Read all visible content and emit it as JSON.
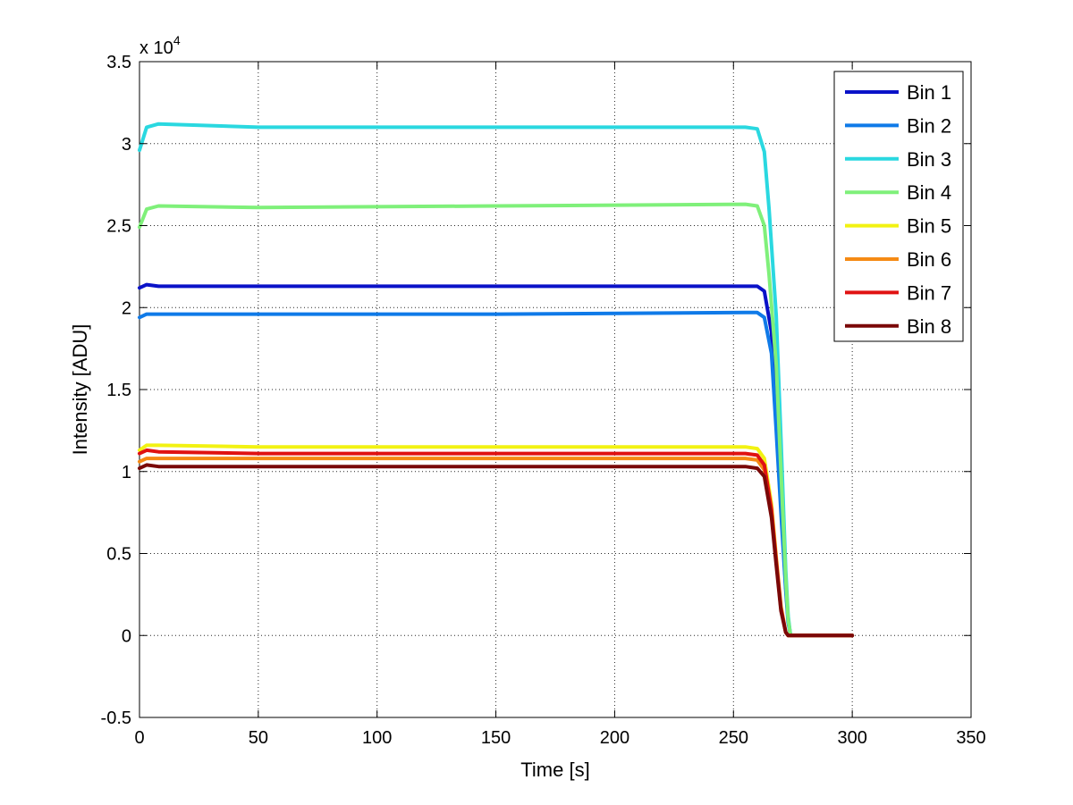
{
  "chart_data": {
    "type": "line",
    "xlabel": "Time [s]",
    "ylabel": "Intensity [ADU]",
    "xlim": [
      0,
      350
    ],
    "ylim": [
      -0.5,
      3.5
    ],
    "y_multiplier_label": "x 10",
    "y_multiplier_exponent": "4",
    "x_ticks": [
      0,
      50,
      100,
      150,
      200,
      250,
      300,
      350
    ],
    "x_tick_labels": [
      "0",
      "50",
      "100",
      "150",
      "200",
      "250",
      "300",
      "350"
    ],
    "y_ticks": [
      -0.5,
      0,
      0.5,
      1,
      1.5,
      2,
      2.5,
      3,
      3.5
    ],
    "y_tick_labels": [
      "-0.5",
      "0",
      "0.5",
      "1",
      "1.5",
      "2",
      "2.5",
      "3",
      "3.5"
    ],
    "grid": true,
    "legend_position": "top-right",
    "series": [
      {
        "name": "Bin 1",
        "color": "#0a12c8",
        "x": [
          0,
          3,
          8,
          50,
          150,
          255,
          260,
          263,
          266,
          268,
          270,
          272,
          273,
          274,
          300
        ],
        "y": [
          2.12,
          2.14,
          2.13,
          2.13,
          2.13,
          2.13,
          2.13,
          2.1,
          1.85,
          1.35,
          0.8,
          0.3,
          0.1,
          0.0,
          0.0
        ]
      },
      {
        "name": "Bin 2",
        "color": "#0f7ae8",
        "x": [
          0,
          3,
          8,
          50,
          150,
          255,
          260,
          263,
          266,
          268,
          270,
          272,
          273,
          274,
          300
        ],
        "y": [
          1.94,
          1.96,
          1.96,
          1.96,
          1.96,
          1.97,
          1.97,
          1.94,
          1.72,
          1.25,
          0.75,
          0.28,
          0.08,
          0.0,
          0.0
        ]
      },
      {
        "name": "Bin 3",
        "color": "#2ad8e0",
        "x": [
          0,
          3,
          8,
          50,
          150,
          255,
          260,
          263,
          265,
          268,
          270,
          272,
          273,
          274,
          300
        ],
        "y": [
          2.96,
          3.1,
          3.12,
          3.1,
          3.1,
          3.1,
          3.09,
          2.95,
          2.6,
          1.95,
          1.2,
          0.4,
          0.12,
          0.0,
          0.0
        ]
      },
      {
        "name": "Bin 4",
        "color": "#7ff07a",
        "x": [
          0,
          3,
          8,
          50,
          150,
          255,
          260,
          263,
          265,
          268,
          270,
          272,
          273,
          274,
          300
        ],
        "y": [
          2.49,
          2.6,
          2.62,
          2.61,
          2.62,
          2.63,
          2.62,
          2.5,
          2.2,
          1.65,
          1.0,
          0.35,
          0.1,
          0.0,
          0.0
        ]
      },
      {
        "name": "Bin 5",
        "color": "#f2f212",
        "x": [
          0,
          3,
          8,
          50,
          150,
          255,
          260,
          263,
          266,
          268,
          270,
          272,
          273,
          300
        ],
        "y": [
          1.13,
          1.16,
          1.16,
          1.15,
          1.15,
          1.15,
          1.14,
          1.08,
          0.8,
          0.48,
          0.18,
          0.02,
          0.0,
          0.0
        ]
      },
      {
        "name": "Bin 6",
        "color": "#f58a14",
        "x": [
          0,
          3,
          8,
          50,
          150,
          255,
          260,
          263,
          266,
          268,
          270,
          272,
          273,
          300
        ],
        "y": [
          1.06,
          1.08,
          1.08,
          1.08,
          1.08,
          1.08,
          1.07,
          1.01,
          0.75,
          0.45,
          0.16,
          0.02,
          0.0,
          0.0
        ]
      },
      {
        "name": "Bin 7",
        "color": "#e01212",
        "x": [
          0,
          3,
          8,
          50,
          150,
          255,
          260,
          263,
          266,
          268,
          270,
          272,
          273,
          300
        ],
        "y": [
          1.11,
          1.13,
          1.12,
          1.11,
          1.11,
          1.11,
          1.1,
          1.04,
          0.77,
          0.46,
          0.17,
          0.02,
          0.0,
          0.0
        ]
      },
      {
        "name": "Bin 8",
        "color": "#7a0808",
        "x": [
          0,
          3,
          8,
          50,
          150,
          255,
          260,
          263,
          266,
          268,
          270,
          272,
          273,
          300
        ],
        "y": [
          1.02,
          1.04,
          1.03,
          1.03,
          1.03,
          1.03,
          1.02,
          0.97,
          0.72,
          0.43,
          0.15,
          0.02,
          0.0,
          0.0
        ]
      }
    ]
  }
}
